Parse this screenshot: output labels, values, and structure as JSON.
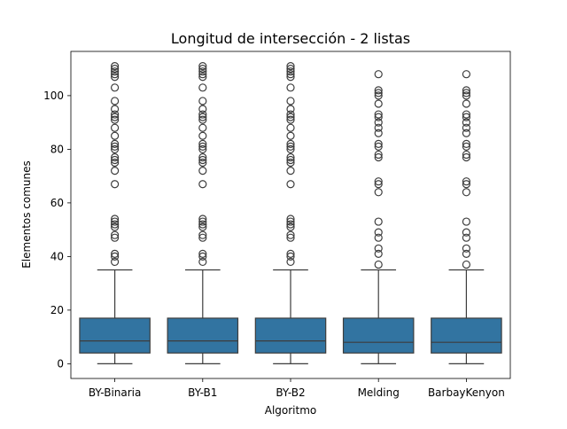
{
  "chart_data": {
    "type": "box",
    "title": "Longitud de intersección - 2 listas",
    "xlabel": "Algoritmo",
    "ylabel": "Elementos comunes",
    "ylim": [
      -5.5,
      116.5
    ],
    "yticks": [
      0,
      20,
      40,
      60,
      80,
      100
    ],
    "grid": false,
    "legend": "none",
    "box_color": "#3274a1",
    "line_color": "#3d3d3d",
    "categories": [
      "BY-Binaria",
      "BY-B1",
      "BY-B2",
      "Melding",
      "BarbayKenyon"
    ],
    "series": [
      {
        "category": "BY-Binaria",
        "whisker_low": 0,
        "q1": 4,
        "median": 8.5,
        "q3": 17,
        "whisker_high": 35,
        "outliers": [
          38,
          40,
          41,
          47,
          48,
          51,
          52,
          53,
          54,
          67,
          72,
          75,
          76,
          77,
          80,
          81,
          82,
          85,
          88,
          91,
          92,
          93,
          95,
          98,
          103,
          107,
          108,
          109,
          110,
          111
        ]
      },
      {
        "category": "BY-B1",
        "whisker_low": 0,
        "q1": 4,
        "median": 8.5,
        "q3": 17,
        "whisker_high": 35,
        "outliers": [
          38,
          40,
          41,
          47,
          48,
          51,
          52,
          53,
          54,
          67,
          72,
          75,
          76,
          77,
          80,
          81,
          82,
          85,
          88,
          91,
          92,
          93,
          95,
          98,
          103,
          107,
          108,
          109,
          110,
          111
        ]
      },
      {
        "category": "BY-B2",
        "whisker_low": 0,
        "q1": 4,
        "median": 8.5,
        "q3": 17,
        "whisker_high": 35,
        "outliers": [
          38,
          40,
          41,
          47,
          48,
          51,
          52,
          53,
          54,
          67,
          72,
          75,
          76,
          77,
          80,
          81,
          82,
          85,
          88,
          91,
          92,
          93,
          95,
          98,
          103,
          107,
          108,
          109,
          110,
          111
        ]
      },
      {
        "category": "Melding",
        "whisker_low": 0,
        "q1": 4,
        "median": 8,
        "q3": 17,
        "whisker_high": 35,
        "outliers": [
          37,
          41,
          43,
          47,
          49,
          53,
          64,
          67,
          68,
          77,
          78,
          81,
          82,
          86,
          88,
          90,
          92,
          93,
          97,
          100,
          101,
          102,
          108
        ]
      },
      {
        "category": "BarbayKenyon",
        "whisker_low": 0,
        "q1": 4,
        "median": 8,
        "q3": 17,
        "whisker_high": 35,
        "outliers": [
          37,
          41,
          43,
          47,
          49,
          53,
          64,
          67,
          68,
          77,
          78,
          81,
          82,
          86,
          88,
          90,
          92,
          93,
          97,
          100,
          101,
          102,
          108
        ]
      }
    ]
  }
}
